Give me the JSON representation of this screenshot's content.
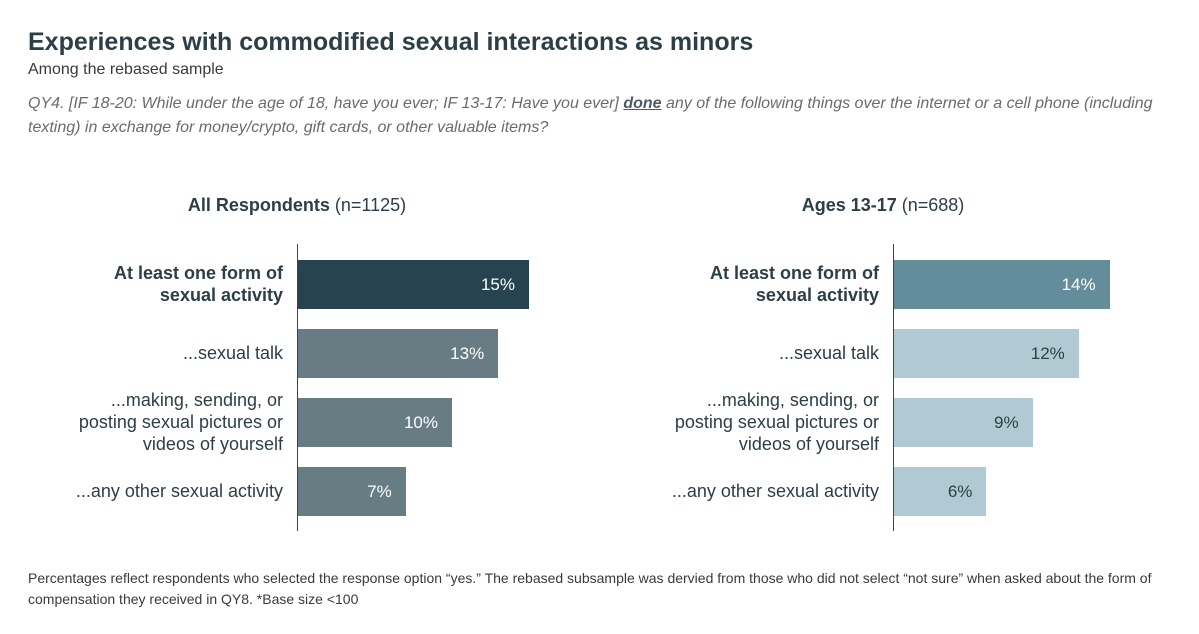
{
  "title": "Experiences with commodified sexual interactions as minors",
  "subtitle": "Among the rebased sample",
  "question": {
    "before": "QY4. [IF 18-20: While under the age of 18, have you ever; IF 13-17: Have you ever] ",
    "emphasis": "done",
    "after": " any of the following things over the internet or a cell phone (including texting) in exchange for money/crypto, gift cards, or other valuable items?"
  },
  "chart_data": [
    {
      "type": "bar",
      "orientation": "horizontal",
      "title_bold": "All Respondents",
      "title_rest": " (n=1125)",
      "categories": [
        "At least one form of sexual activity",
        "...sexual talk",
        "...making, sending, or posting sexual pictures or videos of yourself",
        "...any other sexual activity"
      ],
      "values": [
        15,
        13,
        10,
        7
      ],
      "value_labels": [
        "15%",
        "13%",
        "10%",
        "7%"
      ],
      "unit": "%",
      "colors": [
        "#26434f",
        "#687c84",
        "#687c84",
        "#687c84"
      ],
      "label_colors": [
        "#ffffff",
        "#ffffff",
        "#ffffff",
        "#ffffff"
      ]
    },
    {
      "type": "bar",
      "orientation": "horizontal",
      "title_bold": "Ages 13-17",
      "title_rest": " (n=688)",
      "categories": [
        "At least one form of sexual activity",
        "...sexual talk",
        "...making, sending, or posting sexual pictures or videos of yourself",
        "...any other sexual activity"
      ],
      "values": [
        14,
        12,
        9,
        6
      ],
      "value_labels": [
        "14%",
        "12%",
        "9%",
        "6%"
      ],
      "unit": "%",
      "colors": [
        "#648d9b",
        "#b0c9d2",
        "#b0c9d2",
        "#b0c9d2"
      ],
      "label_colors": [
        "#ffffff",
        "#2c3e46",
        "#2c3e46",
        "#2c3e46"
      ]
    }
  ],
  "footnote": "Percentages reflect respondents who selected the response option “yes.” The rebased subsample was dervied from those who did not select “not sure” when asked about the form of compensation they received in QY8. *Base size <100"
}
